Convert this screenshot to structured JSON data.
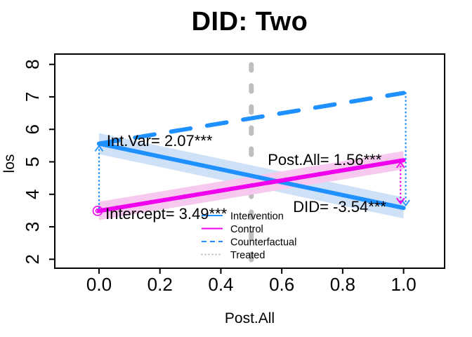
{
  "title": "DID: Two",
  "axes": {
    "x_label": "Post.All",
    "y_label": "los",
    "x_ticks": [
      "0.0",
      "0.2",
      "0.4",
      "0.6",
      "0.8",
      "1.0"
    ],
    "x_tick_values": [
      0.0,
      0.2,
      0.4,
      0.6,
      0.8,
      1.0
    ],
    "y_ticks": [
      "2",
      "3",
      "4",
      "5",
      "6",
      "7",
      "8"
    ],
    "y_tick_values": [
      2,
      3,
      4,
      5,
      6,
      7,
      8
    ]
  },
  "chart_data": {
    "type": "line",
    "title": "DID: Two",
    "xlabel": "Post.All",
    "ylabel": "los",
    "xlim": [
      -0.145,
      1.135
    ],
    "ylim": [
      1.73,
      8.3
    ],
    "x": [
      0,
      1
    ],
    "series": [
      {
        "name": "Intervention",
        "values": [
          5.56,
          3.58
        ],
        "color": "#1E90FF",
        "style": "solid",
        "width": 6,
        "band": true,
        "band_color": "#CEE1F7",
        "band_halfwidth": 0.324
      },
      {
        "name": "Control",
        "values": [
          3.49,
          5.05
        ],
        "color": "#EE00EE",
        "style": "solid",
        "width": 6,
        "band": true,
        "band_color": "#F8C9EE",
        "band_halfwidth": 0.281
      },
      {
        "name": "Counterfactual",
        "values": [
          5.56,
          7.12
        ],
        "color": "#1E90FF",
        "style": "dashed",
        "width": 6,
        "band": false
      }
    ],
    "reference_vline": {
      "x": 0.5,
      "color": "#BEBEBE",
      "style": "dashed"
    },
    "connectors": [
      {
        "name": "treated-gap-baseline",
        "x": 0.0,
        "from": 5.49,
        "to": 3.52,
        "color": "#1E90FF",
        "arrow": "up"
      },
      {
        "name": "treated-gap-followup",
        "x": 1.007,
        "from": 7.12,
        "to": 3.66,
        "color": "#1E90FF",
        "arrow": "down"
      },
      {
        "name": "did-gap",
        "x": 0.99,
        "from": 4.98,
        "to": 3.72,
        "color": "#EE00EE",
        "arrow": "both"
      }
    ],
    "point": {
      "x": 0,
      "y": 3.49,
      "color": "#EE00EE"
    },
    "annotations": [
      {
        "text": "Int.Var= 2.07***",
        "x": 0.025,
        "y": 5.49
      },
      {
        "text": "Post.All= 1.56***",
        "x": 0.554,
        "y": 4.9
      },
      {
        "text": "Intercept= 3.49***",
        "x": 0.021,
        "y": 3.24
      },
      {
        "text": "DID= -3.54***",
        "x": 0.637,
        "y": 3.45
      }
    ],
    "legend": {
      "position": "bottom-center-inside",
      "items": [
        {
          "label": "Intervention",
          "color": "#1E90FF",
          "style": "solid"
        },
        {
          "label": "Control",
          "color": "#EE00EE",
          "style": "solid"
        },
        {
          "label": "Counterfactual",
          "color": "#1E90FF",
          "style": "dashed"
        },
        {
          "label": "Treated",
          "color": "#C4C4C4",
          "style": "dotted"
        }
      ]
    }
  }
}
